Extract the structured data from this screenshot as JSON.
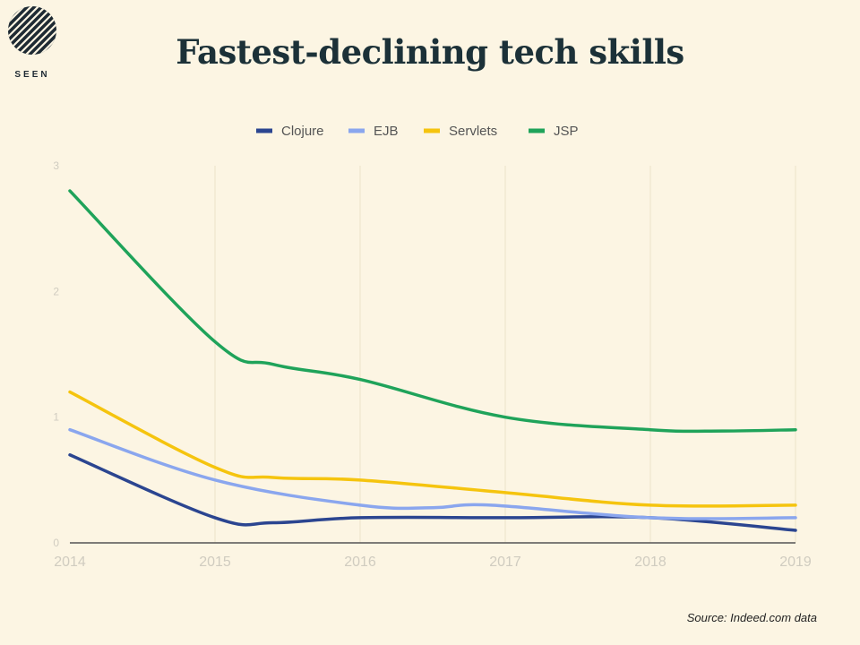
{
  "brand": {
    "logo_text": "SEEN"
  },
  "chart_data": {
    "type": "line",
    "title": "Fastest-declining tech skills",
    "xlabel": "",
    "ylabel": "",
    "x": [
      2014,
      2015,
      2016,
      2017,
      2018,
      2019
    ],
    "xlim": [
      2014,
      2019
    ],
    "ylim": [
      0,
      3
    ],
    "x_ticks": [
      "2014",
      "2015",
      "2016",
      "2017",
      "2018",
      "2019"
    ],
    "y_ticks": [
      "0",
      "1",
      "2",
      "3"
    ],
    "grid": true,
    "legend_position": "top-center",
    "series": [
      {
        "name": "Clojure",
        "color": "#2b4590",
        "x": [
          2014,
          2015,
          2015.4,
          2016,
          2017,
          2018,
          2019
        ],
        "values": [
          0.7,
          0.2,
          0.16,
          0.2,
          0.2,
          0.2,
          0.1
        ]
      },
      {
        "name": "EJB",
        "color": "#8aa6ee",
        "x": [
          2014,
          2015,
          2016,
          2016.5,
          2016.9,
          2018,
          2019
        ],
        "values": [
          0.9,
          0.5,
          0.3,
          0.28,
          0.3,
          0.2,
          0.2
        ]
      },
      {
        "name": "Servlets",
        "color": "#f5c40e",
        "x": [
          2014,
          2015,
          2015.4,
          2016,
          2017,
          2018,
          2019
        ],
        "values": [
          1.2,
          0.6,
          0.52,
          0.5,
          0.4,
          0.3,
          0.3
        ]
      },
      {
        "name": "JSP",
        "color": "#1fa35a",
        "x": [
          2014,
          2015,
          2015.4,
          2016,
          2017,
          2018,
          2018.5,
          2019
        ],
        "values": [
          2.8,
          1.6,
          1.42,
          1.3,
          1.0,
          0.9,
          0.89,
          0.9
        ]
      }
    ],
    "source": "Source: Indeed.com data"
  }
}
